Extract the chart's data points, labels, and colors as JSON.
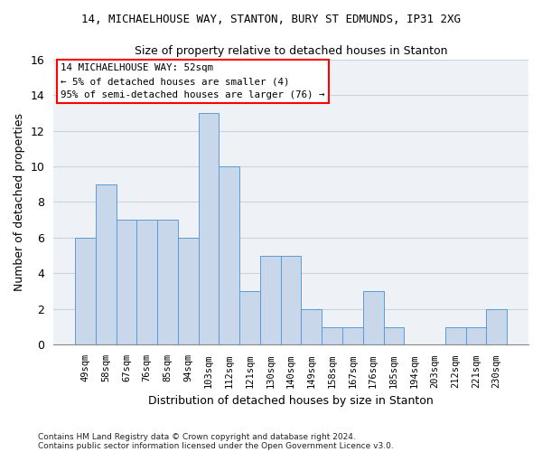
{
  "title1": "14, MICHAELHOUSE WAY, STANTON, BURY ST EDMUNDS, IP31 2XG",
  "title2": "Size of property relative to detached houses in Stanton",
  "xlabel": "Distribution of detached houses by size in Stanton",
  "ylabel": "Number of detached properties",
  "categories": [
    "49sqm",
    "58sqm",
    "67sqm",
    "76sqm",
    "85sqm",
    "94sqm",
    "103sqm",
    "112sqm",
    "121sqm",
    "130sqm",
    "140sqm",
    "149sqm",
    "158sqm",
    "167sqm",
    "176sqm",
    "185sqm",
    "194sqm",
    "203sqm",
    "212sqm",
    "221sqm",
    "230sqm"
  ],
  "values": [
    6,
    9,
    7,
    7,
    7,
    6,
    13,
    10,
    3,
    5,
    5,
    2,
    1,
    1,
    3,
    1,
    0,
    0,
    1,
    1,
    2
  ],
  "bar_color": "#c8d8ea",
  "bar_edge_color": "#5b9bd5",
  "annotation_line1": "14 MICHAELHOUSE WAY: 52sqm",
  "annotation_line2": "← 5% of detached houses are smaller (4)",
  "annotation_line3": "95% of semi-detached houses are larger (76) →",
  "ylim": [
    0,
    16
  ],
  "yticks": [
    0,
    2,
    4,
    6,
    8,
    10,
    12,
    14,
    16
  ],
  "footnote1": "Contains HM Land Registry data © Crown copyright and database right 2024.",
  "footnote2": "Contains public sector information licensed under the Open Government Licence v3.0.",
  "grid_color": "#c8d4dc",
  "background_color": "#eef2f6"
}
